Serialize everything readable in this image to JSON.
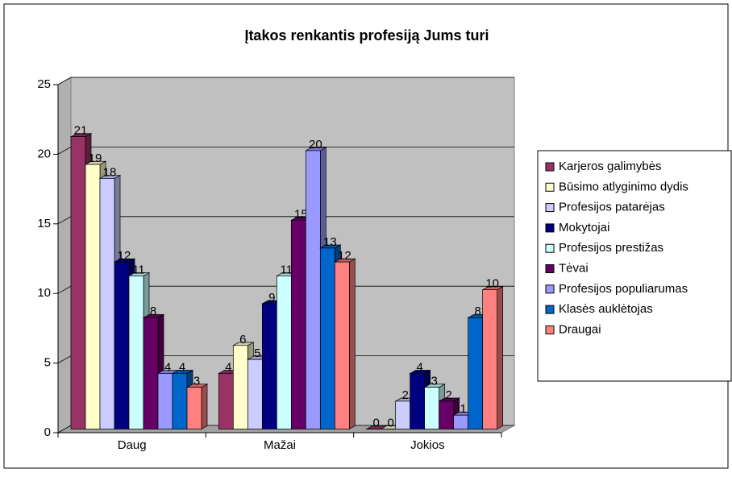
{
  "chart_data": {
    "type": "bar3d",
    "title": "Įtakos renkantis profesiją Jums turi",
    "categories": [
      "Daug",
      "Mažai",
      "Jokios"
    ],
    "series": [
      {
        "name": "Karjeros galimybės",
        "color": "#993366",
        "values": [
          21,
          4,
          0
        ]
      },
      {
        "name": "Būsimo atlyginimo dydis",
        "color": "#ffffcc",
        "values": [
          19,
          6,
          0
        ]
      },
      {
        "name": "Profesijos patarėjas",
        "color": "#ccccff",
        "values": [
          18,
          5,
          2
        ]
      },
      {
        "name": "Mokytojai",
        "color": "#000080",
        "values": [
          12,
          9,
          4
        ]
      },
      {
        "name": "Profesijos prestižas",
        "color": "#ccffff",
        "values": [
          11,
          11,
          3
        ]
      },
      {
        "name": "Tėvai",
        "color": "#660066",
        "values": [
          8,
          15,
          2
        ]
      },
      {
        "name": "Profesijos populiarumas",
        "color": "#9999ff",
        "values": [
          4,
          20,
          1
        ]
      },
      {
        "name": "Klasės auklėtojas",
        "color": "#0066cc",
        "values": [
          4,
          13,
          8
        ]
      },
      {
        "name": "Draugai",
        "color": "#ff8080",
        "values": [
          3,
          12,
          10
        ]
      }
    ],
    "ylim": [
      0,
      25
    ],
    "yticks": [
      0,
      5,
      10,
      15,
      20,
      25
    ],
    "grid": true,
    "legend": "right"
  }
}
